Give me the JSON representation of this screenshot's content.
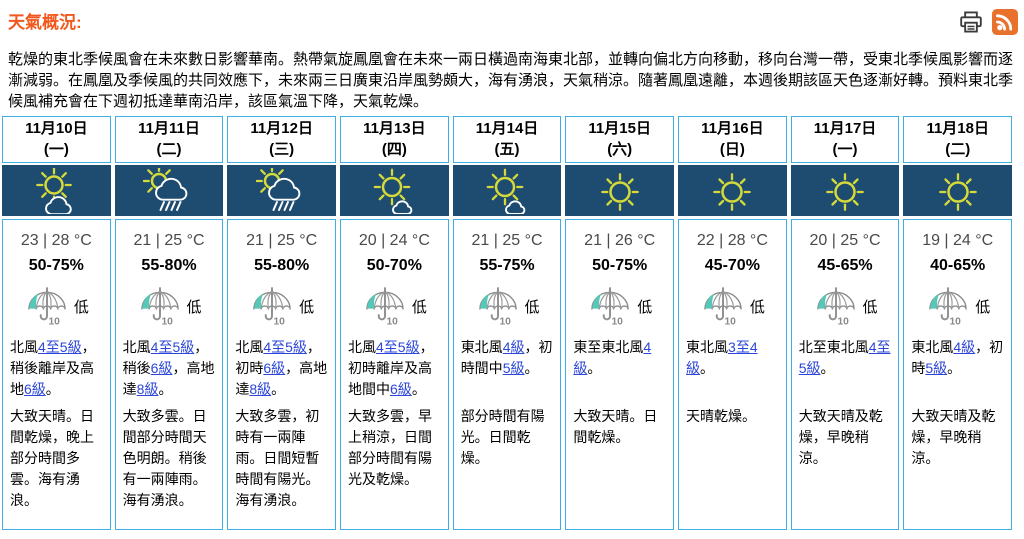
{
  "header": {
    "title": "天氣概況:"
  },
  "summary": "乾燥的東北季候風會在未來數日影響華南。熱帶氣旋鳳凰會在未來一兩日橫過南海東北部，並轉向偏北方向移動，移向台灣一帶，受東北季候風影響而逐漸減弱。在鳳凰及季候風的共同效應下，未來兩三日廣東沿岸風勢頗大，海有湧浪，天氣稍涼。隨著鳳凰遠離，本週後期該區天色逐漸好轉。預料東北季候風補充會在下週初抵達華南沿岸，該區氣溫下降，天氣乾燥。",
  "labels": {
    "psr_icon_number": "10"
  },
  "colors": {
    "accent_orange": "#f2581c",
    "navy": "#1e4c70",
    "border_blue": "#3faee5",
    "link_blue": "#2b46d8",
    "sun_yellow": "#d5da3a",
    "cloud_white": "#ffffff",
    "psr_teal": "#55c8b8",
    "rss_orange": "#e8712b"
  },
  "days": [
    {
      "date": "11月10日",
      "weekday": "(一)",
      "icon": "sun-cloud",
      "temp": "23 | 28 °C",
      "humidity": "50-75%",
      "psr": "低",
      "wind": [
        {
          "text": "北風"
        },
        {
          "text": "4至5級",
          "link": true
        },
        {
          "text": "，稍後離岸及高地"
        },
        {
          "text": "6級",
          "link": true
        },
        {
          "text": "。"
        }
      ],
      "weather": "大致天晴。日間乾燥，晚上部分時間多雲。海有湧浪。"
    },
    {
      "date": "11月11日",
      "weekday": "(二)",
      "icon": "sun-shower",
      "temp": "21 | 25 °C",
      "humidity": "55-80%",
      "psr": "低",
      "wind": [
        {
          "text": "北風"
        },
        {
          "text": "4至5級",
          "link": true
        },
        {
          "text": "，稍後"
        },
        {
          "text": "6級",
          "link": true
        },
        {
          "text": "，高地達"
        },
        {
          "text": "8級",
          "link": true
        },
        {
          "text": "。"
        }
      ],
      "weather": "大致多雲。日間部分時間天色明朗。稍後有一兩陣雨。海有湧浪。"
    },
    {
      "date": "11月12日",
      "weekday": "(三)",
      "icon": "sun-shower",
      "temp": "21 | 25 °C",
      "humidity": "55-80%",
      "psr": "低",
      "wind": [
        {
          "text": "北風"
        },
        {
          "text": "4至5級",
          "link": true
        },
        {
          "text": "，初時"
        },
        {
          "text": "6級",
          "link": true
        },
        {
          "text": "，高地達"
        },
        {
          "text": "8級",
          "link": true
        },
        {
          "text": "。"
        }
      ],
      "weather": "大致多雲，初時有一兩陣雨。日間短暫時間有陽光。海有湧浪。"
    },
    {
      "date": "11月13日",
      "weekday": "(四)",
      "icon": "sun-small-cloud",
      "temp": "20 | 24 °C",
      "humidity": "50-70%",
      "psr": "低",
      "wind": [
        {
          "text": "北風"
        },
        {
          "text": "4至5級",
          "link": true
        },
        {
          "text": "，初時離岸及高地間中"
        },
        {
          "text": "6級",
          "link": true
        },
        {
          "text": "。"
        }
      ],
      "weather": "大致多雲，早上稍涼，日間部分時間有陽光及乾燥。"
    },
    {
      "date": "11月14日",
      "weekday": "(五)",
      "icon": "sun-small-cloud",
      "temp": "21 | 25 °C",
      "humidity": "55-75%",
      "psr": "低",
      "wind": [
        {
          "text": "東北風"
        },
        {
          "text": "4級",
          "link": true
        },
        {
          "text": "，初時間中"
        },
        {
          "text": "5級",
          "link": true
        },
        {
          "text": "。"
        }
      ],
      "weather": "部分時間有陽光。日間乾燥。"
    },
    {
      "date": "11月15日",
      "weekday": "(六)",
      "icon": "sun",
      "temp": "21 | 26 °C",
      "humidity": "50-75%",
      "psr": "低",
      "wind": [
        {
          "text": "東至東北風"
        },
        {
          "text": "4級",
          "link": true
        },
        {
          "text": "。"
        }
      ],
      "weather": "大致天晴。日間乾燥。"
    },
    {
      "date": "11月16日",
      "weekday": "(日)",
      "icon": "sun",
      "temp": "22 | 28 °C",
      "humidity": "45-70%",
      "psr": "低",
      "wind": [
        {
          "text": "東北風"
        },
        {
          "text": "3至4級",
          "link": true
        },
        {
          "text": "。"
        }
      ],
      "weather": "天晴乾燥。"
    },
    {
      "date": "11月17日",
      "weekday": "(一)",
      "icon": "sun",
      "temp": "20 | 25 °C",
      "humidity": "45-65%",
      "psr": "低",
      "wind": [
        {
          "text": "北至東北風"
        },
        {
          "text": "4至5級",
          "link": true
        },
        {
          "text": "。"
        }
      ],
      "weather": "大致天晴及乾燥，早晚稍涼。"
    },
    {
      "date": "11月18日",
      "weekday": "(二)",
      "icon": "sun",
      "temp": "19 | 24 °C",
      "humidity": "40-65%",
      "psr": "低",
      "wind": [
        {
          "text": "東北風"
        },
        {
          "text": "4級",
          "link": true
        },
        {
          "text": "，初時"
        },
        {
          "text": "5級",
          "link": true
        },
        {
          "text": "。"
        }
      ],
      "weather": "大致天晴及乾燥，早晚稍涼。"
    }
  ]
}
